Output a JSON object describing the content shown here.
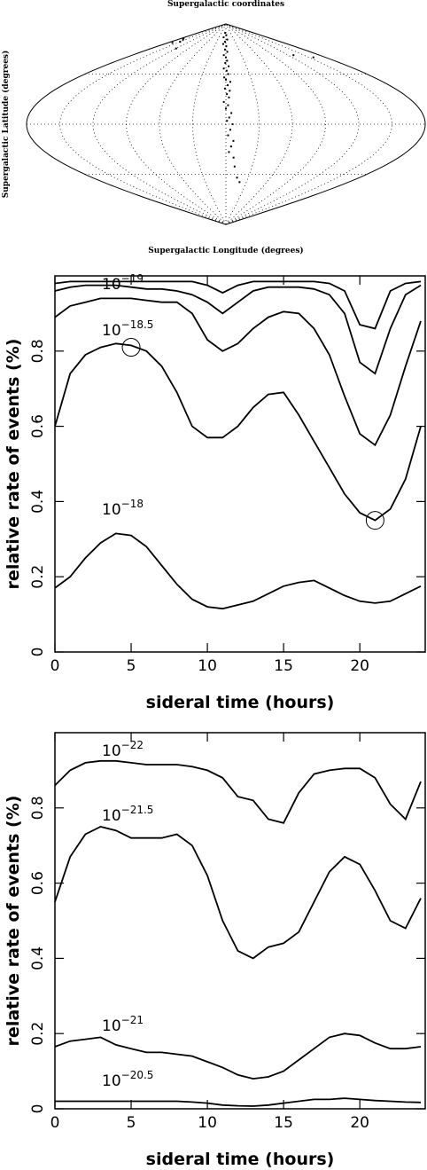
{
  "chart_data": [
    {
      "type": "scatter",
      "projection": "sinusoidal",
      "title": "Supergalactic coordinates",
      "xlabel": "Supergalactic Longitude (degrees)",
      "ylabel": "Supergalactic Latitude (degrees)",
      "xlim": [
        -180,
        180
      ],
      "ylim": [
        -90,
        90
      ],
      "meridian_step": 30,
      "parallel_step": 45,
      "color": "#000000",
      "x": [
        -5,
        2,
        -10,
        5,
        -3,
        -8,
        1,
        -2,
        3,
        -4,
        0,
        2,
        -1,
        4,
        -3,
        1,
        3,
        -2,
        0,
        5,
        2,
        -1,
        4,
        1,
        3,
        -2,
        2,
        0,
        5,
        3,
        1,
        6,
        4,
        2,
        7,
        5,
        3,
        8,
        10,
        15,
        20,
        -160,
        -150,
        -165,
        -170,
        158,
        -120,
        130
      ],
      "y": [
        82,
        80,
        78,
        76,
        74,
        72,
        70,
        67,
        65,
        62,
        60,
        57,
        55,
        52,
        50,
        48,
        45,
        42,
        40,
        38,
        35,
        32,
        30,
        27,
        24,
        20,
        17,
        14,
        10,
        6,
        3,
        0,
        -5,
        -10,
        -15,
        -20,
        -25,
        -30,
        -38,
        -48,
        -52,
        76,
        74,
        73,
        77,
        60,
        68,
        62
      ]
    },
    {
      "type": "line",
      "xlabel": "sideral time (hours)",
      "ylabel": "relative rate of events (%)",
      "xlim": [
        0,
        24
      ],
      "ylim": [
        0,
        1
      ],
      "xticks": [
        0,
        5,
        10,
        15,
        20
      ],
      "yticks": [
        0,
        0.2,
        0.4,
        0.6,
        0.8
      ],
      "x": [
        0,
        1,
        2,
        3,
        4,
        5,
        6,
        7,
        8,
        9,
        10,
        11,
        12,
        13,
        14,
        15,
        16,
        17,
        18,
        19,
        20,
        21,
        22,
        23,
        24
      ],
      "series": [
        {
          "color": "#000000",
          "values": [
            0.98,
            0.985,
            0.985,
            0.985,
            0.985,
            0.985,
            0.985,
            0.985,
            0.985,
            0.985,
            0.975,
            0.955,
            0.975,
            0.985,
            0.985,
            0.985,
            0.985,
            0.985,
            0.98,
            0.96,
            0.87,
            0.86,
            0.96,
            0.98,
            0.985
          ]
        },
        {
          "color": "#000000",
          "label": {
            "base": "10",
            "exponent": "−19"
          },
          "values": [
            0.96,
            0.97,
            0.975,
            0.975,
            0.975,
            0.97,
            0.965,
            0.965,
            0.96,
            0.95,
            0.93,
            0.9,
            0.93,
            0.96,
            0.97,
            0.97,
            0.97,
            0.965,
            0.95,
            0.9,
            0.77,
            0.74,
            0.86,
            0.95,
            0.975
          ]
        },
        {
          "color": "#000000",
          "values": [
            0.89,
            0.92,
            0.93,
            0.94,
            0.94,
            0.94,
            0.935,
            0.93,
            0.93,
            0.9,
            0.83,
            0.8,
            0.82,
            0.86,
            0.89,
            0.905,
            0.9,
            0.86,
            0.79,
            0.68,
            0.58,
            0.55,
            0.63,
            0.76,
            0.88
          ]
        },
        {
          "color": "#000000",
          "label": {
            "base": "10",
            "exponent": "−18.5"
          },
          "values": [
            0.6,
            0.74,
            0.79,
            0.81,
            0.82,
            0.815,
            0.8,
            0.76,
            0.69,
            0.6,
            0.57,
            0.57,
            0.6,
            0.65,
            0.685,
            0.69,
            0.63,
            0.56,
            0.49,
            0.42,
            0.37,
            0.35,
            0.38,
            0.46,
            0.6
          ]
        },
        {
          "color": "#000000",
          "label": {
            "base": "10",
            "exponent": "−18"
          },
          "values": [
            0.17,
            0.2,
            0.25,
            0.29,
            0.315,
            0.31,
            0.28,
            0.23,
            0.18,
            0.14,
            0.12,
            0.115,
            0.125,
            0.135,
            0.155,
            0.175,
            0.185,
            0.19,
            0.17,
            0.15,
            0.135,
            0.13,
            0.135,
            0.155,
            0.175
          ]
        }
      ],
      "markers": {
        "x": [
          5,
          21
        ],
        "y": [
          0.81,
          0.35
        ]
      }
    },
    {
      "type": "line",
      "xlabel": "sideral time (hours)",
      "ylabel": "relative rate of events (%)",
      "xlim": [
        0,
        24
      ],
      "ylim": [
        0,
        1
      ],
      "xticks": [
        0,
        5,
        10,
        15,
        20
      ],
      "yticks": [
        0,
        0.2,
        0.4,
        0.6,
        0.8
      ],
      "x": [
        0,
        1,
        2,
        3,
        4,
        5,
        6,
        7,
        8,
        9,
        10,
        11,
        12,
        13,
        14,
        15,
        16,
        17,
        18,
        19,
        20,
        21,
        22,
        23,
        24
      ],
      "series": [
        {
          "color": "#000000",
          "label": {
            "base": "10",
            "exponent": "−22"
          },
          "values": [
            0.86,
            0.9,
            0.92,
            0.925,
            0.925,
            0.92,
            0.915,
            0.915,
            0.915,
            0.91,
            0.9,
            0.88,
            0.83,
            0.82,
            0.77,
            0.76,
            0.84,
            0.89,
            0.9,
            0.905,
            0.905,
            0.88,
            0.81,
            0.77,
            0.87
          ]
        },
        {
          "color": "#000000",
          "label": {
            "base": "10",
            "exponent": "−21.5"
          },
          "values": [
            0.55,
            0.67,
            0.73,
            0.75,
            0.74,
            0.72,
            0.72,
            0.72,
            0.73,
            0.7,
            0.62,
            0.5,
            0.42,
            0.4,
            0.43,
            0.44,
            0.47,
            0.55,
            0.63,
            0.67,
            0.65,
            0.58,
            0.5,
            0.48,
            0.56
          ]
        },
        {
          "color": "#000000",
          "label": {
            "base": "10",
            "exponent": "−21"
          },
          "values": [
            0.165,
            0.18,
            0.185,
            0.19,
            0.17,
            0.16,
            0.15,
            0.15,
            0.145,
            0.14,
            0.125,
            0.11,
            0.09,
            0.08,
            0.085,
            0.1,
            0.13,
            0.16,
            0.19,
            0.2,
            0.195,
            0.175,
            0.16,
            0.16,
            0.165
          ]
        },
        {
          "color": "#000000",
          "label": {
            "base": "10",
            "exponent": "−20.5"
          },
          "values": [
            0.02,
            0.02,
            0.02,
            0.02,
            0.02,
            0.02,
            0.02,
            0.02,
            0.02,
            0.018,
            0.015,
            0.01,
            0.008,
            0.007,
            0.01,
            0.015,
            0.02,
            0.025,
            0.025,
            0.028,
            0.025,
            0.022,
            0.02,
            0.018,
            0.017
          ]
        }
      ]
    }
  ]
}
